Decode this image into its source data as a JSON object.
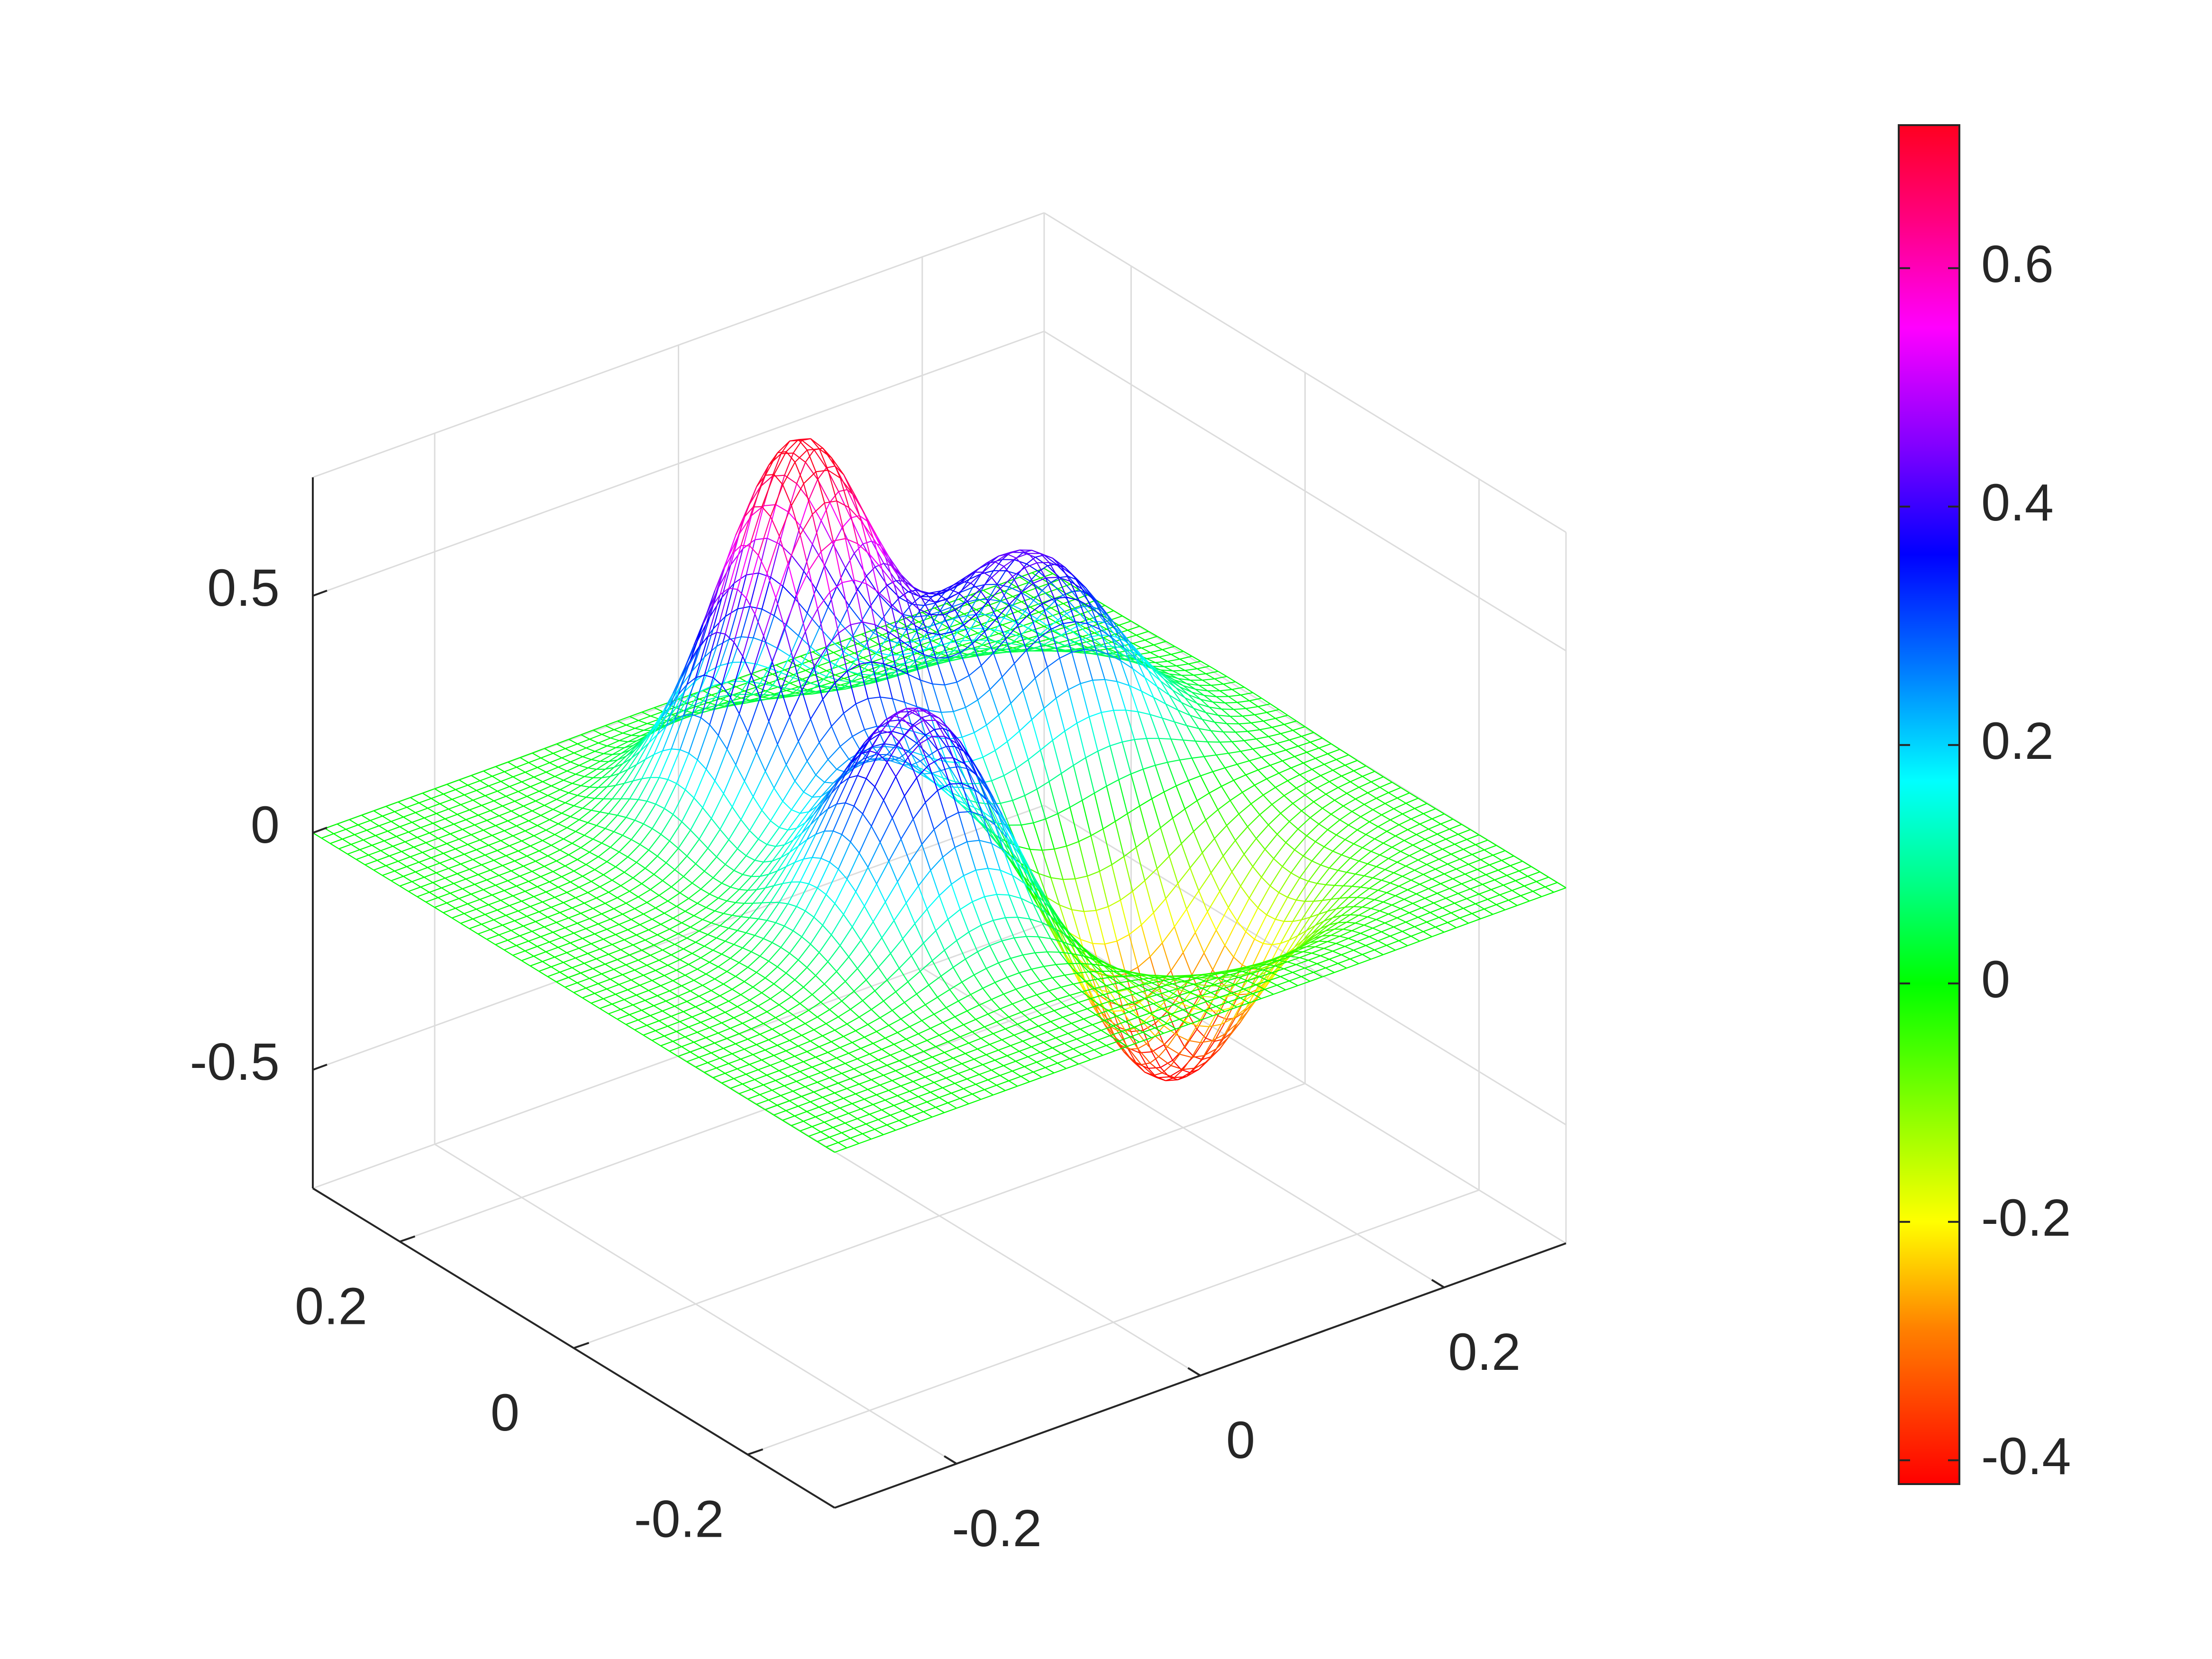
{
  "chart_data": [
    {
      "type": "surface",
      "title": "",
      "xlabel": "",
      "ylabel": "",
      "zlabel": "",
      "x_ticks": [
        -0.2,
        0,
        0.2
      ],
      "x_tick_labels": [
        "-0.2",
        "0",
        "0.2"
      ],
      "y_ticks": [
        -0.2,
        0,
        0.2
      ],
      "y_tick_labels": [
        "-0.2",
        "0",
        "0.2"
      ],
      "z_ticks": [
        -0.5,
        0,
        0.5
      ],
      "z_tick_labels": [
        "-0.5",
        "0",
        "0.5"
      ],
      "xlim": [
        -0.3,
        0.3
      ],
      "ylim": [
        -0.3,
        0.3
      ],
      "zlim": [
        -0.75,
        0.75
      ],
      "grid": true,
      "mesh_resolution": 61,
      "colormap": "hsv",
      "colormap_stops": [
        {
          "value": -0.42,
          "color": "#ff0000"
        },
        {
          "value": -0.29,
          "color": "#ff8000"
        },
        {
          "value": -0.2,
          "color": "#ffff00"
        },
        {
          "value": -0.1,
          "color": "#80ff00"
        },
        {
          "value": 0.0,
          "color": "#00ff00"
        },
        {
          "value": 0.08,
          "color": "#00ff80"
        },
        {
          "value": 0.17,
          "color": "#00ffff"
        },
        {
          "value": 0.26,
          "color": "#0080ff"
        },
        {
          "value": 0.36,
          "color": "#0000ff"
        },
        {
          "value": 0.45,
          "color": "#8000ff"
        },
        {
          "value": 0.55,
          "color": "#ff00ff"
        },
        {
          "value": 0.64,
          "color": "#ff0080"
        },
        {
          "value": 0.72,
          "color": "#ff0020"
        }
      ],
      "features": [
        {
          "x": -0.03,
          "y": 0.12,
          "z": 0.77,
          "sigma": 0.055
        },
        {
          "x": 0.13,
          "y": 0.08,
          "z": 0.43,
          "sigma": 0.06
        },
        {
          "x": -0.07,
          "y": -0.07,
          "z": 0.46,
          "sigma": 0.055
        },
        {
          "x": 0.11,
          "y": -0.11,
          "z": -0.44,
          "sigma": 0.058
        }
      ]
    },
    {
      "type": "colorbar",
      "range": [
        -0.42,
        0.72
      ],
      "ticks": [
        -0.4,
        -0.2,
        0,
        0.2,
        0.4,
        0.6
      ],
      "tick_labels": [
        "-0.4",
        "-0.2",
        "0",
        "0.2",
        "0.4",
        "0.6"
      ]
    }
  ]
}
